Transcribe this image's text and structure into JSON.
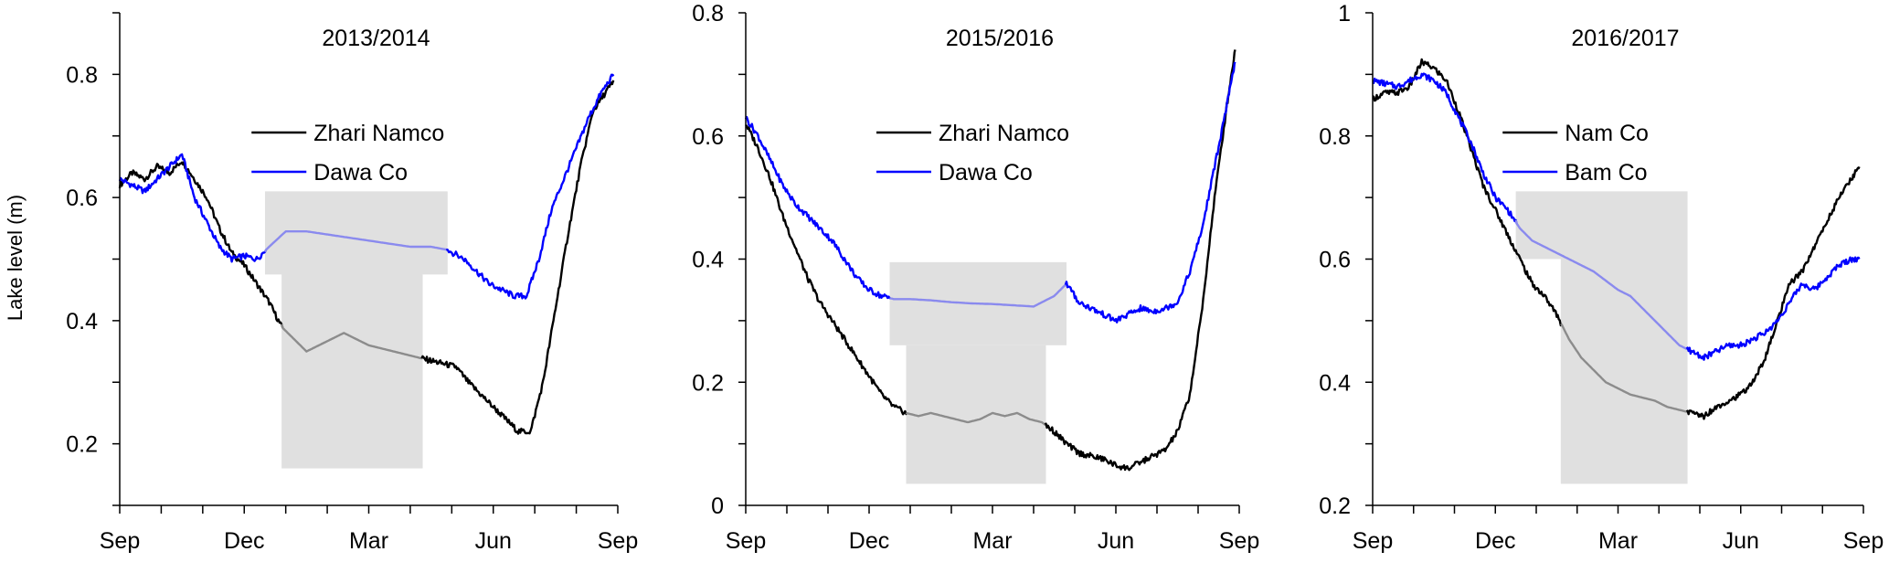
{
  "ylabel": "Lake level (m)",
  "colors": {
    "lake1": "#000000",
    "lake2": "#0000ff",
    "shade": "#e0e0e0"
  },
  "chart_data": [
    {
      "type": "line",
      "title": "2013/2014",
      "ylabel": "Lake level (m)",
      "ylim": [
        0.1,
        0.9
      ],
      "yticks": [
        0.2,
        0.4,
        0.6,
        0.8
      ],
      "xlim": [
        0,
        12
      ],
      "xticks": [
        0,
        3,
        6,
        9,
        12
      ],
      "xticklabels": [
        "Sep",
        "Dec",
        "Mar",
        "Jun",
        "Sep"
      ],
      "legend": "top-center",
      "shaded": [
        {
          "series": 0,
          "x": [
            3.9,
            7.3
          ],
          "y": [
            0.16,
            0.48
          ]
        },
        {
          "series": 1,
          "x": [
            3.5,
            7.9
          ],
          "y": [
            0.475,
            0.61
          ]
        }
      ],
      "series": [
        {
          "name": "Zhari Namco",
          "color": "#000000",
          "x": [
            0,
            0.3,
            0.6,
            0.9,
            1.2,
            1.5,
            1.8,
            2.1,
            2.4,
            2.7,
            3.0,
            3.3,
            3.6,
            3.9,
            4.2,
            4.5,
            4.8,
            5.1,
            5.4,
            5.7,
            6.0,
            6.3,
            6.6,
            6.9,
            7.2,
            7.5,
            7.8,
            8.1,
            8.4,
            8.7,
            9.0,
            9.3,
            9.6,
            9.9,
            10.2,
            10.5,
            10.8,
            11.1,
            11.4,
            11.7,
            11.9
          ],
          "y": [
            0.62,
            0.64,
            0.63,
            0.65,
            0.64,
            0.66,
            0.63,
            0.6,
            0.55,
            0.51,
            0.49,
            0.46,
            0.43,
            0.39,
            0.37,
            0.35,
            0.36,
            0.37,
            0.38,
            0.37,
            0.36,
            0.355,
            0.35,
            0.345,
            0.34,
            0.335,
            0.33,
            0.325,
            0.3,
            0.28,
            0.26,
            0.24,
            0.22,
            0.22,
            0.3,
            0.42,
            0.54,
            0.65,
            0.74,
            0.77,
            0.79
          ]
        },
        {
          "name": "Dawa Co",
          "color": "#0000ff",
          "x": [
            0,
            0.3,
            0.6,
            0.9,
            1.2,
            1.5,
            1.8,
            2.1,
            2.4,
            2.7,
            3.0,
            3.3,
            3.6,
            4.0,
            4.5,
            5.0,
            5.5,
            6.0,
            6.5,
            7.0,
            7.5,
            7.9,
            8.3,
            8.6,
            8.9,
            9.2,
            9.5,
            9.8,
            10.1,
            10.4,
            10.7,
            11.0,
            11.3,
            11.6,
            11.9
          ],
          "y": [
            0.63,
            0.62,
            0.61,
            0.63,
            0.65,
            0.67,
            0.6,
            0.56,
            0.52,
            0.5,
            0.505,
            0.5,
            0.52,
            0.545,
            0.545,
            0.54,
            0.535,
            0.53,
            0.525,
            0.52,
            0.52,
            0.515,
            0.5,
            0.48,
            0.46,
            0.45,
            0.44,
            0.44,
            0.5,
            0.58,
            0.63,
            0.68,
            0.73,
            0.77,
            0.8
          ]
        }
      ]
    },
    {
      "type": "line",
      "title": "2015/2016",
      "ylim": [
        0,
        0.8
      ],
      "yticks": [
        0,
        0.2,
        0.4,
        0.6,
        0.8
      ],
      "xlim": [
        0,
        12
      ],
      "xticks": [
        0,
        3,
        6,
        9,
        12
      ],
      "xticklabels": [
        "Sep",
        "Dec",
        "Mar",
        "Jun",
        "Sep"
      ],
      "legend": "top-center",
      "shaded": [
        {
          "series": 0,
          "x": [
            3.9,
            7.3
          ],
          "y": [
            0.035,
            0.26
          ]
        },
        {
          "series": 1,
          "x": [
            3.5,
            7.8
          ],
          "y": [
            0.26,
            0.395
          ]
        }
      ],
      "series": [
        {
          "name": "Zhari Namco",
          "color": "#000000",
          "x": [
            0,
            0.3,
            0.6,
            0.9,
            1.2,
            1.5,
            1.8,
            2.1,
            2.4,
            2.7,
            3.0,
            3.3,
            3.6,
            3.9,
            4.2,
            4.5,
            4.8,
            5.1,
            5.4,
            5.7,
            6.0,
            6.3,
            6.6,
            6.9,
            7.2,
            7.5,
            7.8,
            8.1,
            8.4,
            8.7,
            9.0,
            9.3,
            9.6,
            9.9,
            10.2,
            10.5,
            10.8,
            11.1,
            11.4,
            11.7,
            11.9
          ],
          "y": [
            0.62,
            0.58,
            0.53,
            0.47,
            0.42,
            0.37,
            0.33,
            0.3,
            0.27,
            0.24,
            0.21,
            0.18,
            0.16,
            0.15,
            0.145,
            0.15,
            0.145,
            0.14,
            0.135,
            0.14,
            0.15,
            0.145,
            0.15,
            0.14,
            0.135,
            0.12,
            0.1,
            0.085,
            0.08,
            0.075,
            0.065,
            0.06,
            0.07,
            0.08,
            0.09,
            0.12,
            0.18,
            0.32,
            0.5,
            0.65,
            0.74
          ]
        },
        {
          "name": "Dawa Co",
          "color": "#0000ff",
          "x": [
            0,
            0.3,
            0.6,
            0.9,
            1.2,
            1.5,
            1.8,
            2.1,
            2.4,
            2.7,
            3.0,
            3.3,
            3.6,
            4.0,
            4.5,
            5.0,
            5.5,
            6.0,
            6.5,
            7.0,
            7.5,
            7.8,
            8.1,
            8.4,
            8.7,
            9.0,
            9.3,
            9.6,
            9.9,
            10.2,
            10.5,
            10.8,
            11.1,
            11.4,
            11.7,
            11.9
          ],
          "y": [
            0.63,
            0.6,
            0.56,
            0.52,
            0.49,
            0.47,
            0.45,
            0.43,
            0.4,
            0.37,
            0.35,
            0.34,
            0.335,
            0.335,
            0.333,
            0.33,
            0.328,
            0.327,
            0.325,
            0.323,
            0.34,
            0.36,
            0.33,
            0.32,
            0.31,
            0.3,
            0.31,
            0.32,
            0.315,
            0.32,
            0.33,
            0.38,
            0.45,
            0.55,
            0.65,
            0.72
          ]
        }
      ]
    },
    {
      "type": "line",
      "title": "2016/2017",
      "ylim": [
        0.2,
        1.0
      ],
      "yticks": [
        0.2,
        0.4,
        0.6,
        0.8,
        1
      ],
      "xlim": [
        0,
        12
      ],
      "xticks": [
        0,
        3,
        6,
        9,
        12
      ],
      "xticklabels": [
        "Sep",
        "Dec",
        "Mar",
        "Jun",
        "Sep"
      ],
      "legend": "top-center",
      "shaded": [
        {
          "series": 0,
          "x": [
            4.6,
            7.7
          ],
          "y": [
            0.235,
            0.6
          ]
        },
        {
          "series": 1,
          "x": [
            3.5,
            7.7
          ],
          "y": [
            0.6,
            0.71
          ]
        }
      ],
      "series": [
        {
          "name": "Nam Co",
          "color": "#000000",
          "x": [
            0,
            0.3,
            0.6,
            0.9,
            1.2,
            1.5,
            1.8,
            2.1,
            2.4,
            2.7,
            3.0,
            3.3,
            3.6,
            3.9,
            4.2,
            4.5,
            4.8,
            5.1,
            5.4,
            5.7,
            6.0,
            6.3,
            6.6,
            6.9,
            7.2,
            7.5,
            7.8,
            8.1,
            8.4,
            8.7,
            9.0,
            9.3,
            9.6,
            9.9,
            10.2,
            10.5,
            10.8,
            11.1,
            11.4,
            11.7,
            11.9
          ],
          "y": [
            0.86,
            0.87,
            0.87,
            0.88,
            0.92,
            0.91,
            0.89,
            0.84,
            0.78,
            0.72,
            0.68,
            0.64,
            0.6,
            0.56,
            0.54,
            0.51,
            0.47,
            0.44,
            0.42,
            0.4,
            0.39,
            0.38,
            0.375,
            0.37,
            0.36,
            0.355,
            0.35,
            0.345,
            0.36,
            0.37,
            0.38,
            0.4,
            0.44,
            0.5,
            0.56,
            0.58,
            0.62,
            0.66,
            0.7,
            0.73,
            0.75
          ]
        },
        {
          "name": "Bam Co",
          "color": "#0000ff",
          "x": [
            0,
            0.3,
            0.6,
            0.9,
            1.2,
            1.5,
            1.8,
            2.1,
            2.4,
            2.7,
            3.0,
            3.3,
            3.6,
            3.9,
            4.2,
            4.5,
            4.8,
            5.1,
            5.4,
            5.7,
            6.0,
            6.3,
            6.6,
            6.9,
            7.2,
            7.5,
            7.8,
            8.1,
            8.4,
            8.7,
            9.0,
            9.3,
            9.6,
            9.9,
            10.2,
            10.5,
            10.8,
            11.1,
            11.4,
            11.7,
            11.9
          ],
          "y": [
            0.89,
            0.885,
            0.88,
            0.89,
            0.9,
            0.89,
            0.87,
            0.83,
            0.79,
            0.74,
            0.7,
            0.68,
            0.65,
            0.63,
            0.62,
            0.61,
            0.6,
            0.59,
            0.58,
            0.565,
            0.55,
            0.54,
            0.52,
            0.5,
            0.48,
            0.46,
            0.45,
            0.44,
            0.45,
            0.46,
            0.46,
            0.47,
            0.48,
            0.5,
            0.53,
            0.56,
            0.55,
            0.57,
            0.59,
            0.6,
            0.6
          ]
        }
      ]
    }
  ]
}
